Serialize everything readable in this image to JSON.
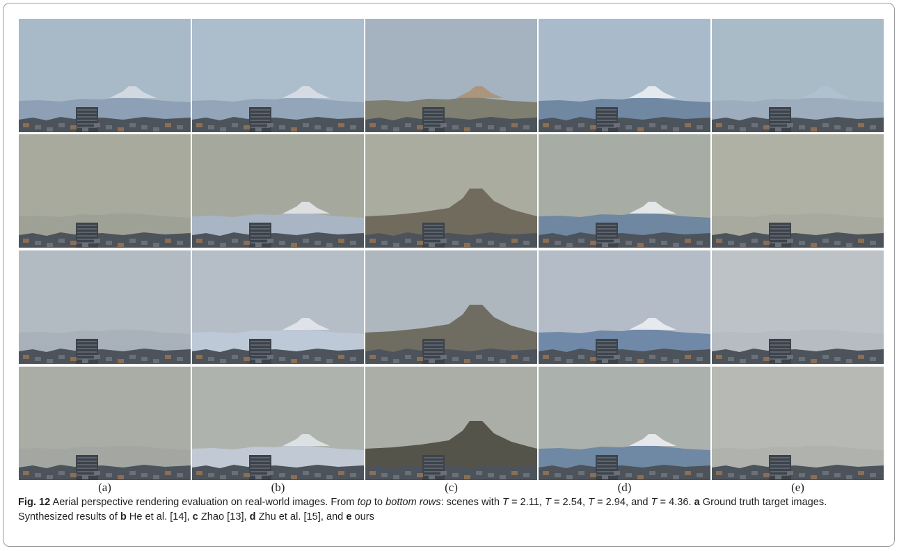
{
  "figure": {
    "column_labels": [
      "(a)",
      "(b)",
      "(c)",
      "(d)",
      "(e)"
    ],
    "caption": {
      "segments": [
        "Fig. 12",
        " Aerial perspective rendering evaluation on real-world images. From ",
        "top",
        " to ",
        "bottom rows",
        ": scenes with ",
        "T",
        " = 2.11, ",
        "T",
        " = 2.54, ",
        "T",
        " = 2.94, and ",
        "T",
        " = 4.36. ",
        "a",
        " Ground truth target images. Synthesized results of ",
        "b",
        " He et al. [14], ",
        "c",
        " Zhao [13], ",
        "d",
        " Zhu et al. [15], and ",
        "e",
        " ours"
      ]
    }
  }
}
